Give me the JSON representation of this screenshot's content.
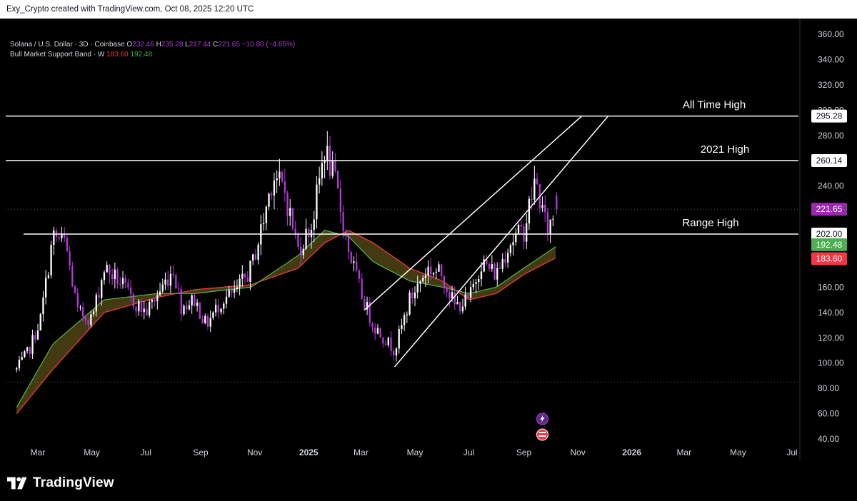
{
  "header": {
    "credit": "Exy_Crypto created with TradingView.com, Oct 08, 2025 12:20 UTC"
  },
  "legend": {
    "symbol": "Solana / U.S. Dollar · 3D · Coinbase",
    "o_label": "O",
    "o_value": "232.46",
    "h_label": "H",
    "h_value": "235.28",
    "l_label": "L",
    "l_value": "217.44",
    "c_label": "C",
    "c_value": "221.65",
    "change": "−10.80 (−4.65%)",
    "indicator": "Bull Market Support Band · W",
    "ind_low": "183.60",
    "ind_high": "192.48"
  },
  "footer": {
    "brand": "TradingView"
  },
  "colors": {
    "background": "#000000",
    "candle_up": "#ffffff",
    "candle_down": "#b23ad6",
    "band_sma": "#f23645",
    "band_ema": "#4caf50",
    "level_line": "#ffffff",
    "price_badge": "#9c27b0"
  },
  "chart_data": {
    "type": "candlestick",
    "title": "Solana / U.S. Dollar · 3D · Coinbase",
    "y_axis": {
      "min": 40,
      "max": 360,
      "ticks": [
        360,
        340,
        320,
        300,
        280,
        260,
        240,
        220,
        200,
        180,
        160,
        140,
        120,
        100,
        80,
        60,
        40
      ]
    },
    "x_axis": {
      "ticks": [
        "Mar",
        "May",
        "Jul",
        "Sep",
        "Nov",
        "2025",
        "Mar",
        "May",
        "Jul",
        "Sep",
        "Nov",
        "2026",
        "Mar",
        "May",
        "Jul"
      ]
    },
    "price_path": [
      [
        "2024-02-06",
        95
      ],
      [
        "2024-02-20",
        110
      ],
      [
        "2024-03-04",
        135
      ],
      [
        "2024-03-18",
        200
      ],
      [
        "2024-04-01",
        195
      ],
      [
        "2024-04-15",
        140
      ],
      [
        "2024-05-01",
        135
      ],
      [
        "2024-05-15",
        175
      ],
      [
        "2024-06-01",
        165
      ],
      [
        "2024-06-15",
        150
      ],
      [
        "2024-07-01",
        140
      ],
      [
        "2024-07-15",
        155
      ],
      [
        "2024-08-01",
        175
      ],
      [
        "2024-08-10",
        145
      ],
      [
        "2024-08-25",
        150
      ],
      [
        "2024-09-07",
        130
      ],
      [
        "2024-09-25",
        150
      ],
      [
        "2024-10-10",
        155
      ],
      [
        "2024-10-28",
        175
      ],
      [
        "2024-11-10",
        210
      ],
      [
        "2024-11-22",
        250
      ],
      [
        "2024-12-05",
        235
      ],
      [
        "2024-12-20",
        190
      ],
      [
        "2025-01-05",
        210
      ],
      [
        "2025-01-19",
        270
      ],
      [
        "2025-02-01",
        240
      ],
      [
        "2025-02-15",
        190
      ],
      [
        "2025-03-01",
        155
      ],
      [
        "2025-03-15",
        130
      ],
      [
        "2025-04-08",
        110
      ],
      [
        "2025-04-25",
        150
      ],
      [
        "2025-05-15",
        175
      ],
      [
        "2025-06-01",
        170
      ],
      [
        "2025-06-15",
        145
      ],
      [
        "2025-07-01",
        150
      ],
      [
        "2025-07-15",
        180
      ],
      [
        "2025-08-01",
        170
      ],
      [
        "2025-08-15",
        195
      ],
      [
        "2025-09-01",
        205
      ],
      [
        "2025-09-14",
        245
      ],
      [
        "2025-09-27",
        205
      ],
      [
        "2025-10-08",
        221.65
      ]
    ],
    "last_candle": {
      "date": "2025-10-08",
      "open": 232.46,
      "high": 235.28,
      "low": 217.44,
      "close": 221.65
    },
    "series": [
      {
        "name": "Bull Market Support Band (SMA)",
        "color": "#f23645",
        "points": [
          [
            "2024-02-06",
            60
          ],
          [
            "2024-03-18",
            95
          ],
          [
            "2024-05-15",
            140
          ],
          [
            "2024-07-15",
            152
          ],
          [
            "2024-08-25",
            158
          ],
          [
            "2024-10-28",
            162
          ],
          [
            "2024-12-20",
            175
          ],
          [
            "2025-01-19",
            195
          ],
          [
            "2025-02-15",
            205
          ],
          [
            "2025-03-15",
            195
          ],
          [
            "2025-04-25",
            175
          ],
          [
            "2025-06-01",
            165
          ],
          [
            "2025-07-01",
            150
          ],
          [
            "2025-08-01",
            155
          ],
          [
            "2025-09-01",
            170
          ],
          [
            "2025-10-08",
            183.6
          ]
        ]
      },
      {
        "name": "Bull Market Support Band (EMA)",
        "color": "#4caf50",
        "points": [
          [
            "2024-02-06",
            65
          ],
          [
            "2024-03-18",
            115
          ],
          [
            "2024-05-15",
            150
          ],
          [
            "2024-07-15",
            155
          ],
          [
            "2024-08-25",
            155
          ],
          [
            "2024-10-28",
            160
          ],
          [
            "2024-12-20",
            185
          ],
          [
            "2025-01-19",
            205
          ],
          [
            "2025-02-15",
            200
          ],
          [
            "2025-03-15",
            180
          ],
          [
            "2025-04-25",
            165
          ],
          [
            "2025-06-01",
            160
          ],
          [
            "2025-07-01",
            155
          ],
          [
            "2025-08-01",
            160
          ],
          [
            "2025-09-01",
            175
          ],
          [
            "2025-10-08",
            192.48
          ]
        ]
      }
    ],
    "horizontal_levels": [
      {
        "label": "All Time High",
        "value": 295.28
      },
      {
        "label": "2021 High",
        "value": 260.14
      },
      {
        "label": "Range High",
        "value": 202.0
      }
    ],
    "dotted_levels": [
      221.65,
      85
    ],
    "price_badges": [
      {
        "label": "295.28",
        "style": "white"
      },
      {
        "label": "260.14",
        "style": "white"
      },
      {
        "label": "221.65",
        "style": "purple"
      },
      {
        "label": "202.00",
        "style": "white"
      },
      {
        "label": "192.48",
        "style": "green"
      },
      {
        "label": "183.60",
        "style": "red"
      }
    ],
    "channel": {
      "lower": [
        [
          "2025-04-08",
          97
        ],
        [
          "2025-12-05",
          295
        ]
      ],
      "upper": [
        [
          "2025-03-05",
          142
        ],
        [
          "2025-11-05",
          295
        ]
      ]
    }
  }
}
